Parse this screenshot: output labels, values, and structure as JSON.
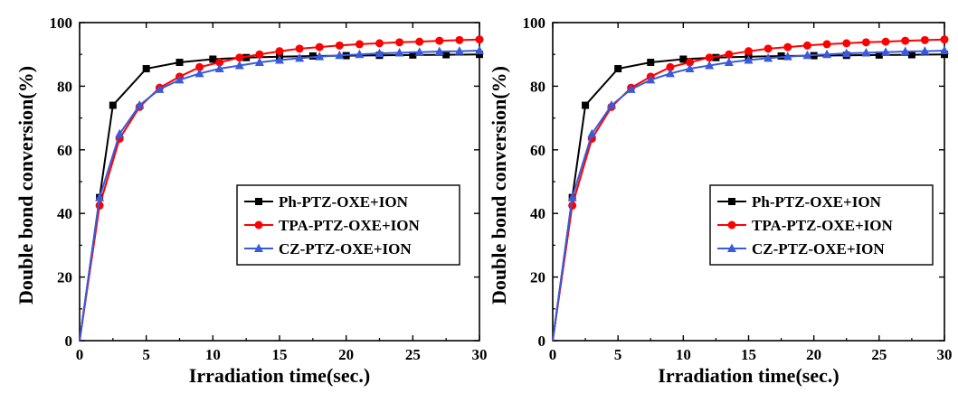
{
  "chart_data": [
    {
      "type": "line",
      "xlabel": "Irradiation time(sec.)",
      "ylabel": "Double bond conversion(%)",
      "xlim": [
        0,
        30
      ],
      "ylim": [
        0,
        100
      ],
      "xticks": [
        "0",
        "5",
        "10",
        "15",
        "20",
        "25",
        "30"
      ],
      "yticks": [
        "0",
        "20",
        "40",
        "60",
        "80",
        "100"
      ],
      "grid": false,
      "legend_position": "right",
      "series": [
        {
          "name": "Ph-PTZ-OXE+ION",
          "color": "#000000",
          "marker": "square",
          "x": [
            0,
            1.5,
            2.5,
            5,
            7.5,
            10,
            12.5,
            15,
            17.5,
            20,
            22.5,
            25,
            27.5,
            30
          ],
          "y": [
            0,
            45,
            74,
            85.5,
            87.5,
            88.5,
            89,
            89.3,
            89.5,
            89.6,
            89.7,
            89.8,
            89.9,
            90
          ]
        },
        {
          "name": "TPA-PTZ-OXE+ION",
          "color": "#ff0000",
          "marker": "circle",
          "x": [
            0,
            1.5,
            3,
            4.5,
            6,
            7.5,
            9,
            10.5,
            12,
            13.5,
            15,
            16.5,
            18,
            19.5,
            21,
            22.5,
            24,
            25.5,
            27,
            28.5,
            30
          ],
          "y": [
            0,
            42.5,
            63.5,
            73.5,
            79.5,
            83,
            86,
            87.5,
            89,
            90,
            91,
            91.8,
            92.3,
            92.8,
            93.2,
            93.5,
            93.8,
            94,
            94.3,
            94.5,
            94.7
          ]
        },
        {
          "name": "CZ-PTZ-OXE+ION",
          "color": "#3a5bd9",
          "marker": "triangle",
          "x": [
            0,
            1.5,
            3,
            4.5,
            6,
            7.5,
            9,
            10.5,
            12,
            13.5,
            15,
            16.5,
            18,
            19.5,
            21,
            22.5,
            24,
            25.5,
            27,
            28.5,
            30
          ],
          "y": [
            0,
            45,
            65,
            74,
            79,
            82,
            84,
            85.5,
            86.5,
            87.5,
            88.2,
            88.8,
            89.3,
            89.7,
            90,
            90.3,
            90.5,
            90.7,
            90.9,
            91,
            91.2
          ]
        }
      ]
    },
    {
      "type": "line",
      "xlabel": "Irradiation time(sec.)",
      "ylabel": "Double bond conversion(%)",
      "xlim": [
        0,
        30
      ],
      "ylim": [
        0,
        100
      ],
      "xticks": [
        "0",
        "5",
        "10",
        "15",
        "20",
        "25",
        "30"
      ],
      "yticks": [
        "0",
        "20",
        "40",
        "60",
        "80",
        "100"
      ],
      "grid": false,
      "legend_position": "right",
      "series": [
        {
          "name": "Ph-PTZ-OXE+ION",
          "color": "#000000",
          "marker": "square",
          "x": [
            0,
            1.5,
            2.5,
            5,
            7.5,
            10,
            12.5,
            15,
            17.5,
            20,
            22.5,
            25,
            27.5,
            30
          ],
          "y": [
            0,
            45,
            74,
            85.5,
            87.5,
            88.5,
            89,
            89.3,
            89.5,
            89.6,
            89.7,
            89.8,
            89.9,
            90
          ]
        },
        {
          "name": "TPA-PTZ-OXE+ION",
          "color": "#ff0000",
          "marker": "circle",
          "x": [
            0,
            1.5,
            3,
            4.5,
            6,
            7.5,
            9,
            10.5,
            12,
            13.5,
            15,
            16.5,
            18,
            19.5,
            21,
            22.5,
            24,
            25.5,
            27,
            28.5,
            30
          ],
          "y": [
            0,
            42.5,
            63.5,
            73.5,
            79.5,
            83,
            86,
            87.5,
            89,
            90,
            91,
            91.8,
            92.3,
            92.8,
            93.2,
            93.5,
            93.8,
            94,
            94.3,
            94.5,
            94.7
          ]
        },
        {
          "name": "CZ-PTZ-OXE+ION",
          "color": "#3a5bd9",
          "marker": "triangle",
          "x": [
            0,
            1.5,
            3,
            4.5,
            6,
            7.5,
            9,
            10.5,
            12,
            13.5,
            15,
            16.5,
            18,
            19.5,
            21,
            22.5,
            24,
            25.5,
            27,
            28.5,
            30
          ],
          "y": [
            0,
            45,
            65,
            74,
            79,
            82,
            84,
            85.5,
            86.5,
            87.5,
            88.2,
            88.8,
            89.3,
            89.7,
            90,
            90.3,
            90.5,
            90.7,
            90.9,
            91,
            91.2
          ]
        }
      ]
    }
  ]
}
